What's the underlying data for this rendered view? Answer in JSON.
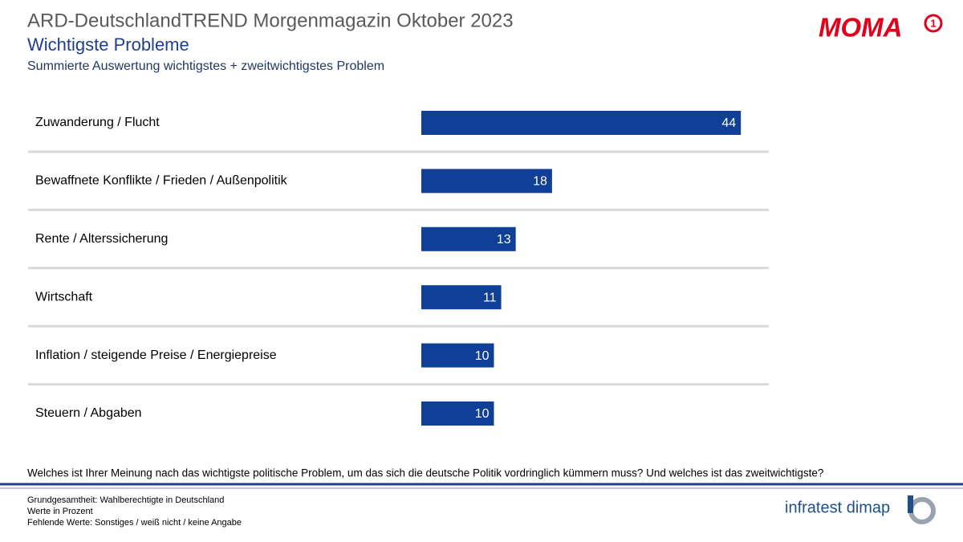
{
  "chart_data": {
    "type": "bar",
    "orientation": "horizontal",
    "title": "ARD-DeutschlandTREND Morgenmagazin Oktober 2023",
    "subtitle": "Wichtigste Probleme",
    "description": "Summierte Auswertung wichtigstes + zweitwichtigstes Problem",
    "categories": [
      "Zuwanderung / Flucht",
      "Bewaffnete Konflikte / Frieden / Außenpolitik",
      "Rente / Alterssicherung",
      "Wirtschaft",
      "Inflation / steigende Preise / Energiepreise",
      "Steuern / Abgaben"
    ],
    "values": [
      44,
      18,
      13,
      11,
      10,
      10
    ],
    "color": "#0f3f96"
  },
  "question": "Welches ist Ihrer Meinung nach das wichtigste politische Problem, um das sich die deutsche Politik vordringlich kümmern muss? Und welches ist das zweitwichtigste?",
  "footnotes": [
    "Grundgesamtheit:  Wahlberechtigte in Deutschland",
    "Werte in Prozent",
    "Fehlende Werte: Sonstiges / weiß nicht / keine Angabe"
  ],
  "logos": {
    "program": "MOMA",
    "badge": "1",
    "institute": "infratest dimap"
  }
}
